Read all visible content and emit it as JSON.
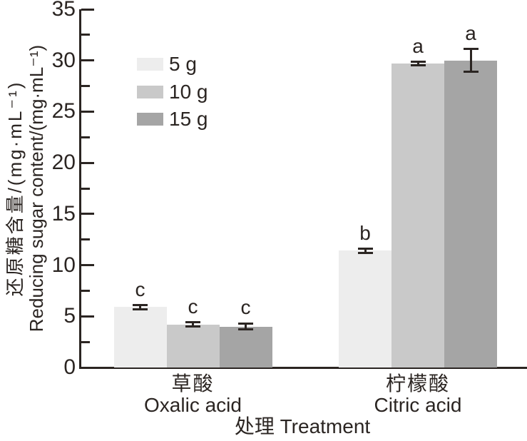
{
  "chart_data": {
    "type": "bar",
    "title": "",
    "xlabel": "处理 Treatment",
    "ylabel_zh": "还原糖含量/(mg·mL⁻¹)",
    "ylabel_en": "Reducing sugar content/(mg·mL⁻¹)",
    "ylim": [
      0,
      35
    ],
    "ytick_step": 5,
    "yminor_step": 2.5,
    "grid": false,
    "legend_position": "upper-left-inside",
    "categories": [
      {
        "zh": "草酸",
        "en": "Oxalic acid"
      },
      {
        "zh": "柠檬酸",
        "en": "Citric acid"
      }
    ],
    "series": [
      {
        "name": "5 g",
        "color": "#ededed",
        "values": [
          5.9,
          11.4
        ],
        "errors": [
          0.2,
          0.2
        ],
        "letters": [
          "c",
          "b"
        ]
      },
      {
        "name": "10 g",
        "color": "#c9c9c9",
        "values": [
          4.2,
          29.7
        ],
        "errors": [
          0.2,
          0.15
        ],
        "letters": [
          "c",
          "a"
        ]
      },
      {
        "name": "15 g",
        "color": "#a5a5a5",
        "values": [
          4.0,
          30.0
        ],
        "errors": [
          0.3,
          1.1
        ],
        "letters": [
          "c",
          "a"
        ]
      }
    ],
    "colors": {
      "ink": "#2b2522",
      "background": "#ffffff"
    }
  }
}
